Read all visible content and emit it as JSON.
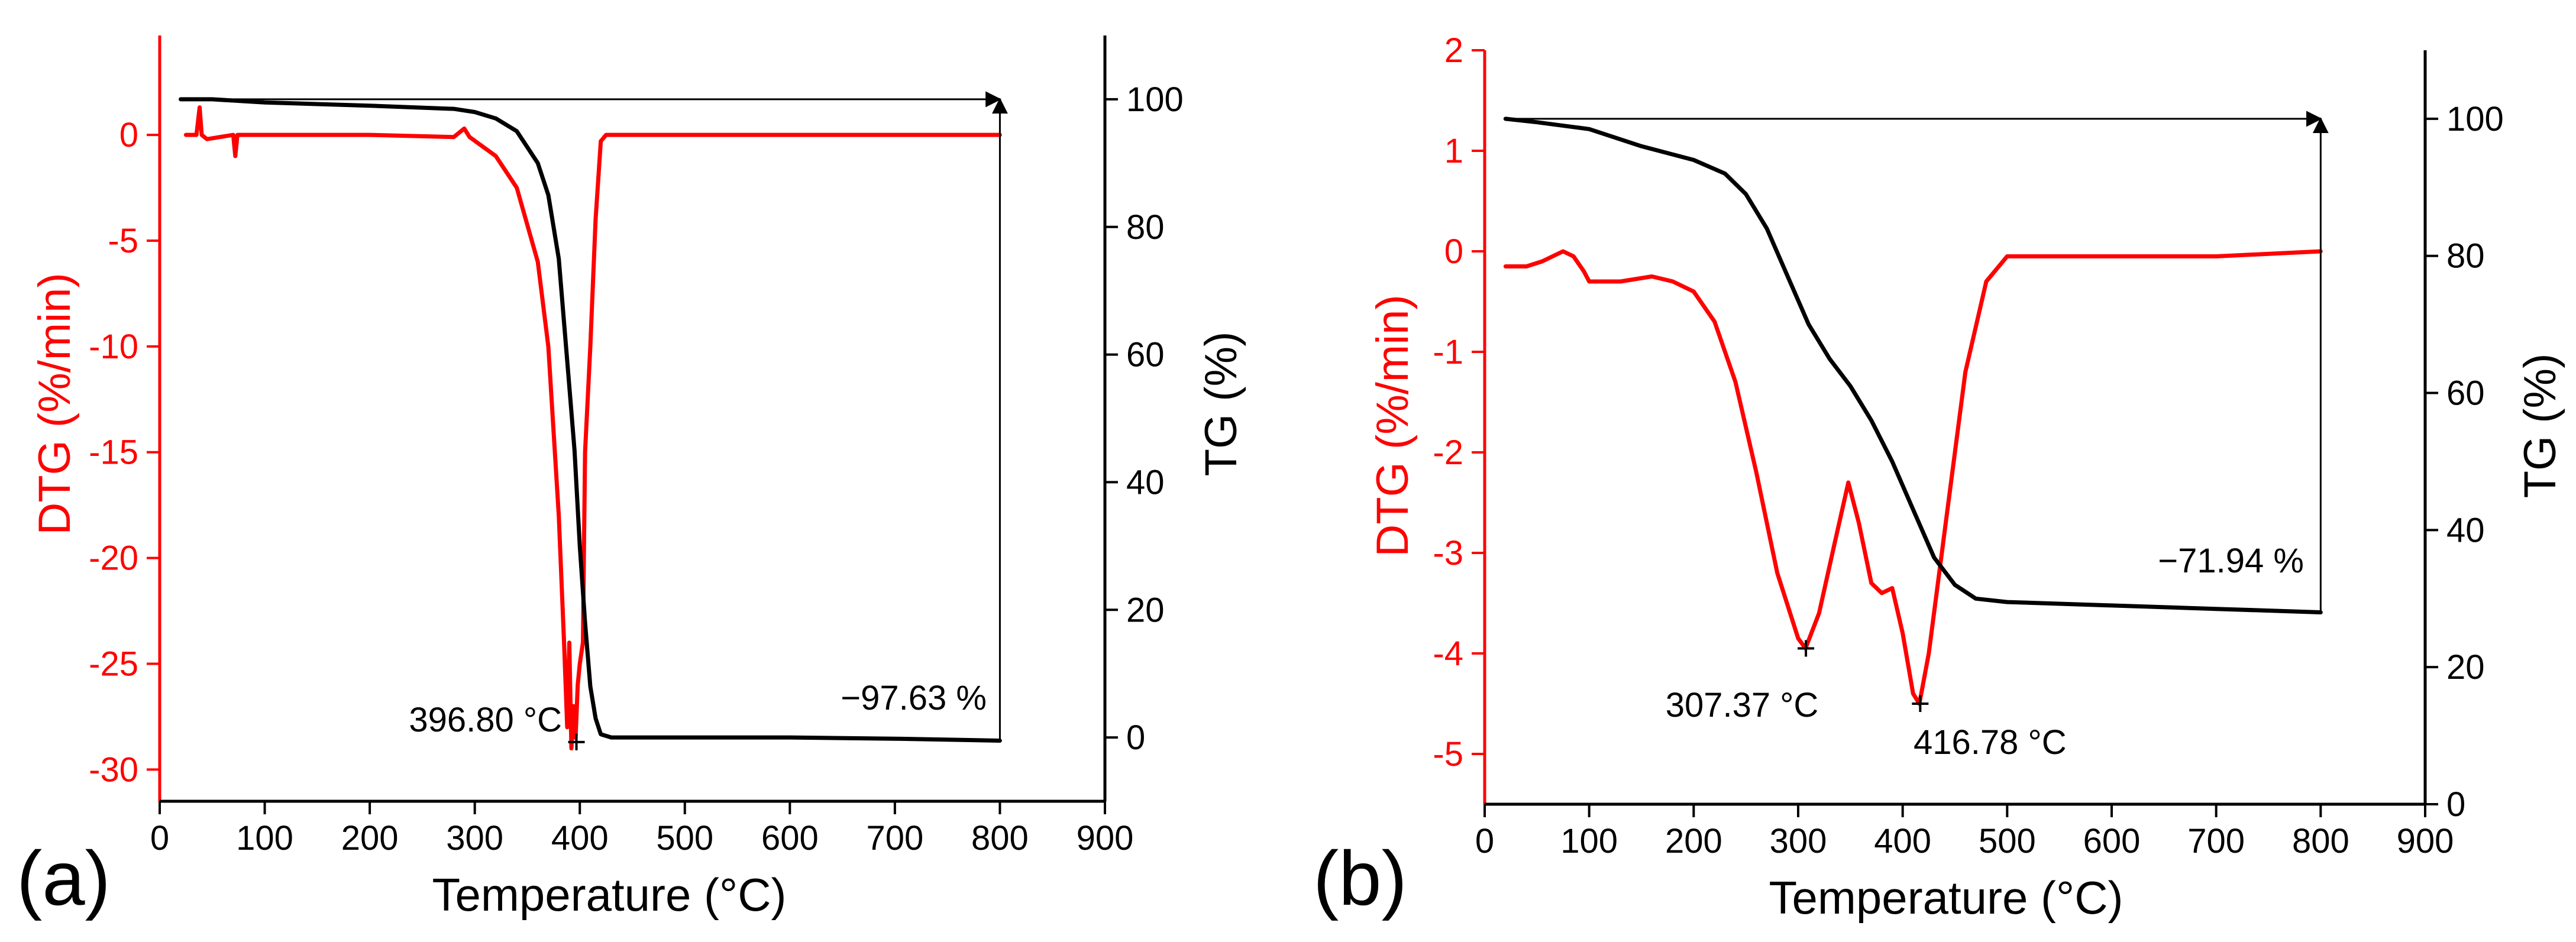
{
  "chart_data": [
    {
      "panel_label": "(a)",
      "type": "line",
      "xlabel": "Temperature (°C)",
      "ylabel_left": "DTG (%/min)",
      "ylabel_right": "TG (%)",
      "xlim": [
        0,
        900
      ],
      "ylim_left": [
        -31.5,
        4.7
      ],
      "ylim_right": [
        -10,
        110
      ],
      "x_ticks": [
        "0",
        "100",
        "200",
        "300",
        "400",
        "500",
        "600",
        "700",
        "800",
        "900"
      ],
      "y_left_ticks": [
        "0",
        "-5",
        "-10",
        "-15",
        "-20",
        "-25",
        "-30"
      ],
      "y_right_ticks": [
        "0",
        "20",
        "40",
        "60",
        "80",
        "100"
      ],
      "colors": {
        "dtg": "#ff0000",
        "tg": "#000000"
      },
      "series": [
        {
          "name": "DTG",
          "axis": "left",
          "color": "#ff0000",
          "x": [
            25,
            35,
            38,
            40,
            45,
            70,
            72,
            74,
            100,
            200,
            280,
            290,
            295,
            320,
            340,
            360,
            370,
            380,
            385,
            388,
            390,
            392,
            394,
            396,
            398,
            400,
            403,
            405,
            410,
            415,
            420,
            425,
            430,
            500,
            600,
            700,
            800
          ],
          "y": [
            0,
            0,
            1.3,
            0,
            -0.2,
            0,
            -1,
            0,
            0,
            0,
            -0.1,
            0.3,
            -0.1,
            -1,
            -2.5,
            -6,
            -10,
            -18,
            -24,
            -28,
            -24,
            -29,
            -27,
            -28.5,
            -26,
            -25,
            -24,
            -15,
            -10,
            -4,
            -0.3,
            0,
            0,
            0,
            0,
            0,
            0
          ]
        },
        {
          "name": "TG",
          "axis": "right",
          "color": "#000000",
          "x": [
            20,
            50,
            100,
            200,
            280,
            300,
            320,
            340,
            360,
            370,
            380,
            390,
            395,
            400,
            405,
            410,
            415,
            420,
            430,
            500,
            600,
            700,
            800
          ],
          "y": [
            100,
            100,
            99.5,
            99,
            98.5,
            98,
            97,
            95,
            90,
            85,
            75,
            55,
            45,
            30,
            18,
            8,
            3,
            0.5,
            0,
            0,
            0,
            -0.2,
            -0.5
          ]
        }
      ],
      "annotations": [
        {
          "text": "396.80 °C",
          "x": 396.8,
          "y": -28.7
        },
        {
          "text": "−97.63 %",
          "x": 680,
          "y": -28
        }
      ]
    },
    {
      "panel_label": "(b)",
      "type": "line",
      "xlabel": "Temperature (°C)",
      "ylabel_left": "DTG (%/min)",
      "ylabel_right": "TG (%)",
      "xlim": [
        0,
        900
      ],
      "ylim_left": [
        -5.5,
        2
      ],
      "ylim_right": [
        0,
        110
      ],
      "x_ticks": [
        "0",
        "100",
        "200",
        "300",
        "400",
        "500",
        "600",
        "700",
        "800",
        "900"
      ],
      "y_left_ticks": [
        "2",
        "1",
        "0",
        "-1",
        "-2",
        "-3",
        "-4",
        "-5"
      ],
      "y_right_ticks": [
        "0",
        "20",
        "40",
        "60",
        "80",
        "100"
      ],
      "colors": {
        "dtg": "#ff0000",
        "tg": "#000000"
      },
      "series": [
        {
          "name": "DTG",
          "axis": "left",
          "color": "#ff0000",
          "x": [
            20,
            40,
            55,
            65,
            75,
            85,
            95,
            100,
            130,
            160,
            180,
            200,
            220,
            240,
            260,
            280,
            300,
            307,
            320,
            335,
            348,
            358,
            370,
            380,
            390,
            400,
            410,
            416,
            425,
            440,
            460,
            480,
            500,
            600,
            700,
            800
          ],
          "y": [
            -0.15,
            -0.15,
            -0.1,
            -0.05,
            0,
            -0.05,
            -0.2,
            -0.3,
            -0.3,
            -0.25,
            -0.3,
            -0.4,
            -0.7,
            -1.3,
            -2.2,
            -3.2,
            -3.85,
            -3.95,
            -3.6,
            -2.9,
            -2.3,
            -2.7,
            -3.3,
            -3.4,
            -3.35,
            -3.8,
            -4.4,
            -4.5,
            -4.0,
            -2.8,
            -1.2,
            -0.3,
            -0.05,
            -0.05,
            -0.05,
            0
          ]
        },
        {
          "name": "TG",
          "axis": "right",
          "color": "#000000",
          "x": [
            20,
            50,
            100,
            150,
            200,
            230,
            250,
            270,
            290,
            310,
            330,
            350,
            370,
            390,
            410,
            430,
            450,
            470,
            500,
            600,
            700,
            800
          ],
          "y": [
            100,
            99.5,
            98.5,
            96,
            94,
            92,
            89,
            84,
            77,
            70,
            65,
            61,
            56,
            50,
            43,
            36,
            32,
            30,
            29.5,
            29,
            28.5,
            28
          ]
        }
      ],
      "annotations": [
        {
          "text": "307.37 °C",
          "x": 307.4,
          "y": -3.95
        },
        {
          "text": "416.78 °C",
          "x": 416.8,
          "y": -4.5
        },
        {
          "text": "−71.94 %",
          "x": 720,
          "y": -3.3
        }
      ]
    }
  ]
}
